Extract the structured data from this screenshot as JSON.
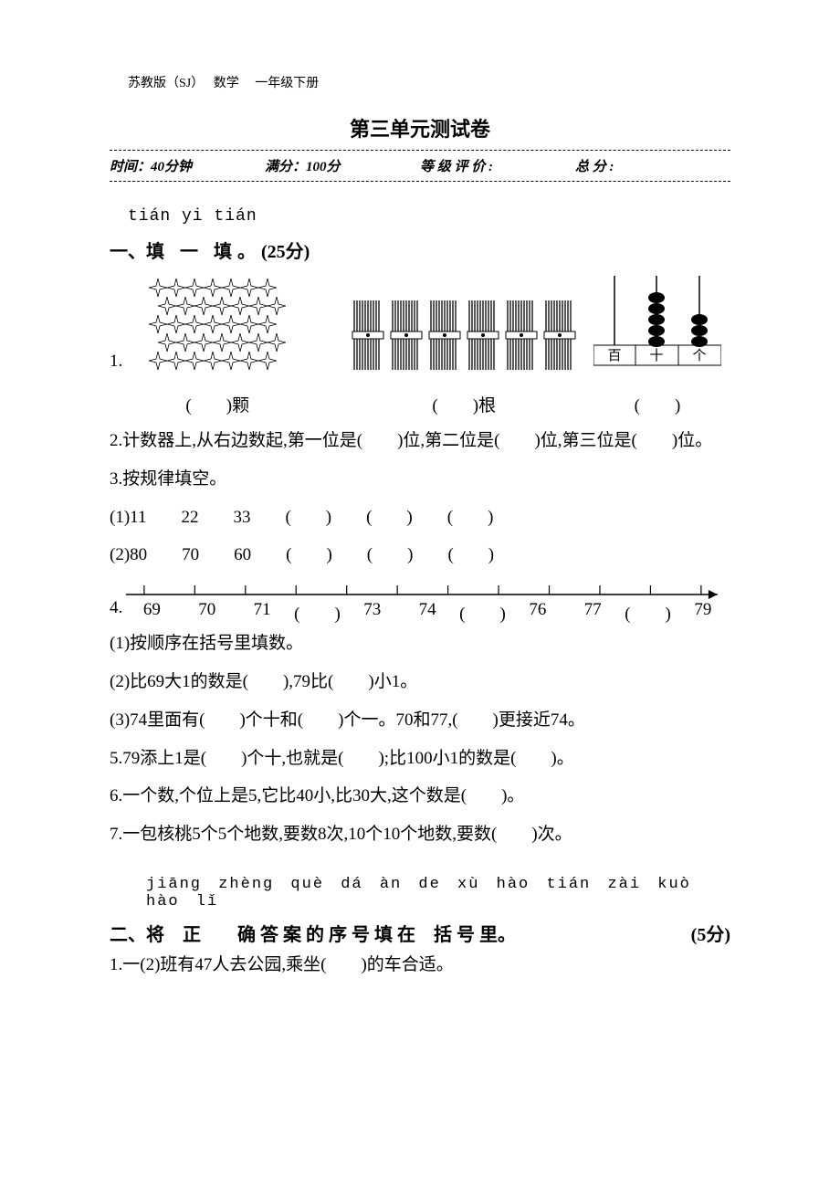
{
  "book_ref": {
    "publisher": "苏教版（SJ）",
    "subject": "数学",
    "grade": "一年级下册"
  },
  "title": "第三单元测试卷",
  "info": {
    "time": "时间：40分钟",
    "full": "满分：100分",
    "grade": "等 级 评 价 :",
    "total": "总 分 :"
  },
  "sec1": {
    "pinyin": "tián yi tián",
    "head_pre": "一、",
    "head_chars": "填 一 填。",
    "head_pts": "(25分)",
    "q1": {
      "num": "1.",
      "stars": {
        "rows": 5,
        "per_row": 7,
        "label": "(　　)颗"
      },
      "sticks": {
        "bundles": 6,
        "label": "(　　)根"
      },
      "abacus": {
        "cols": [
          "百",
          "十",
          "个"
        ],
        "beads": [
          0,
          5,
          3
        ],
        "label": "(　　)"
      }
    },
    "q2": "2.计数器上,从右边数起,第一位是(　　)位,第二位是(　　)位,第三位是(　　)位。",
    "q3": {
      "head": "3.按规律填空。",
      "row1": "(1)11　　22　　33　　(　　)　　(　　)　　(　　)",
      "row2": "(2)80　　70　　60　　(　　)　　(　　)　　(　　)"
    },
    "q4": {
      "num": "4.",
      "ticks": 12,
      "labels": [
        "69",
        "70",
        "71",
        "(　　)",
        "73",
        "74",
        "(　　)",
        "76",
        "77",
        "(　　)",
        "79"
      ],
      "sub1": "(1)按顺序在括号里填数。",
      "sub2": "(2)比69大1的数是(　　),79比(　　)小1。",
      "sub3": "(3)74里面有(　　)个十和(　　)个一。70和77,(　　)更接近74。"
    },
    "q5": "5.79添上1是(　　)个十,也就是(　　);比100小1的数是(　　)。",
    "q6": "6.一个数,个位上是5,它比40小,比30大,这个数是(　　)。",
    "q7": "7.一包核桃5个5个地数,要数8次,10个10个地数,要数(　　)次。"
  },
  "sec2": {
    "pinyin": "jiāng zhèng què dá àn de xù hào tián zài kuò hào lǐ",
    "head_pre": "二、",
    "head_chars": "将　正　　确 答 案 的 序 号 填 在　括 号 里。",
    "head_pts": "(5分)",
    "q1": "1.一(2)班有47人去公园,乘坐(　　)的车合适。"
  },
  "colors": {
    "text": "#000000",
    "bg": "#ffffff"
  }
}
